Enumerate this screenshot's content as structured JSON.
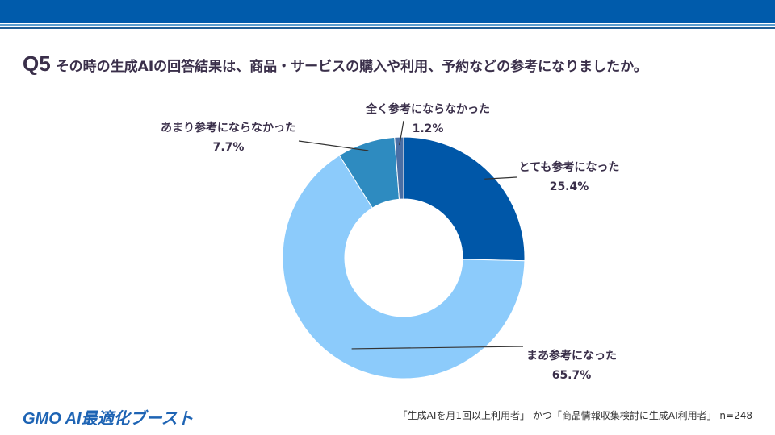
{
  "header": {
    "q_num": "Q5",
    "question": "その時の生成AIの回答結果は、商品・サービスの購入や利用、予約などの参考になりましたか。"
  },
  "footer": {
    "logo": "GMO AI最適化ブースト",
    "note": "「生成AIを月1回以上利用者」 かつ「商品情報収集検討に生成AI利用者」 n=248"
  },
  "chart_data": {
    "type": "pie",
    "donut": true,
    "start": "top",
    "direction": "clockwise",
    "categories": [
      "とても参考になった",
      "まあ参考になった",
      "あまり参考にならなかった",
      "全く参考にならなかった"
    ],
    "values": [
      25.4,
      65.7,
      7.7,
      1.2
    ],
    "labels": [
      "25.4%",
      "65.7%",
      "7.7%",
      "1.2%"
    ],
    "colors": [
      "#0057a8",
      "#8ccbfb",
      "#2e8bc0",
      "#4a6fa5"
    ]
  }
}
